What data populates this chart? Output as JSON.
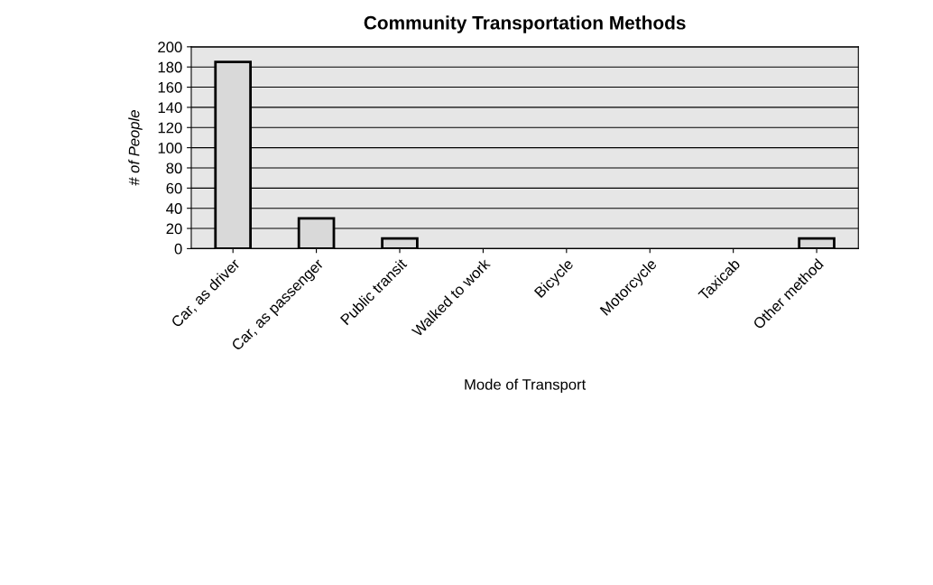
{
  "chart_data": {
    "type": "bar",
    "title": "Community Transportation Methods",
    "xlabel": "Mode of Transport",
    "ylabel": "# of People",
    "categories": [
      "Car, as driver",
      "Car, as passenger",
      "Public transit",
      "Walked to work",
      "Bicycle",
      "Motorcycle",
      "Taxicab",
      "Other method"
    ],
    "values": [
      185,
      30,
      10,
      0,
      0,
      0,
      0,
      10
    ],
    "color": "#d9d9d9",
    "ylim": [
      0,
      200
    ],
    "yticks": [
      0,
      20,
      40,
      60,
      80,
      100,
      120,
      140,
      160,
      180,
      200
    ],
    "grid": "y"
  }
}
